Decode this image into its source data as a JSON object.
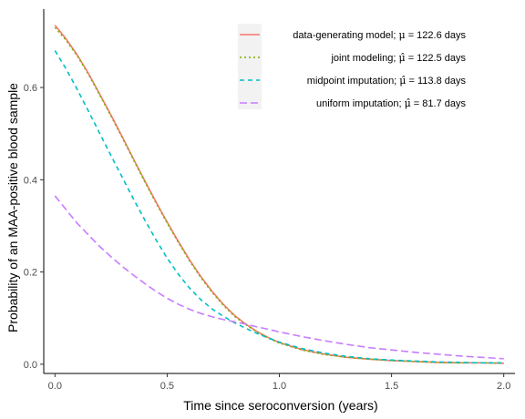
{
  "chart_data": {
    "type": "line",
    "title": "",
    "xlabel": "Time since seroconversion (years)",
    "ylabel": "Probability of an MAA-positive blood sample",
    "xlim": [
      -0.05,
      2.05
    ],
    "ylim": [
      -0.02,
      0.77
    ],
    "x_ticks": [
      0.0,
      0.5,
      1.0,
      1.5,
      2.0
    ],
    "x_tick_labels": [
      "0.0",
      "0.5",
      "1.0",
      "1.5",
      "2.0"
    ],
    "y_ticks": [
      0.0,
      0.2,
      0.4,
      0.6
    ],
    "y_tick_labels": [
      "0.0",
      "0.2",
      "0.4",
      "0.6"
    ],
    "grid": false,
    "legend_position": "top-right",
    "x": [
      0,
      0.05,
      0.1,
      0.15,
      0.2,
      0.25,
      0.3,
      0.35,
      0.4,
      0.45,
      0.5,
      0.55,
      0.6,
      0.65,
      0.7,
      0.75,
      0.8,
      0.85,
      0.9,
      0.95,
      1.0,
      1.1,
      1.2,
      1.3,
      1.4,
      1.5,
      1.6,
      1.7,
      1.8,
      1.9,
      2.0
    ],
    "series": [
      {
        "name": "data-generating model; ",
        "symbol": "μ",
        "value_text": " = 122.6 days",
        "color": "#F8766D",
        "dash": "solid",
        "values": [
          0.735,
          0.705,
          0.67,
          0.63,
          0.585,
          0.54,
          0.493,
          0.445,
          0.398,
          0.352,
          0.308,
          0.266,
          0.226,
          0.19,
          0.158,
          0.13,
          0.106,
          0.087,
          0.071,
          0.058,
          0.047,
          0.032,
          0.022,
          0.015,
          0.011,
          0.008,
          0.006,
          0.004,
          0.003,
          0.003,
          0.002
        ]
      },
      {
        "name": "joint modeling; ",
        "symbol": "μ̂",
        "value_text": " = 122.5 days",
        "color": "#7CAE00",
        "dash": "dotted",
        "values": [
          0.73,
          0.702,
          0.668,
          0.628,
          0.583,
          0.538,
          0.491,
          0.443,
          0.396,
          0.35,
          0.306,
          0.264,
          0.224,
          0.188,
          0.156,
          0.128,
          0.104,
          0.086,
          0.07,
          0.057,
          0.046,
          0.031,
          0.021,
          0.015,
          0.011,
          0.008,
          0.006,
          0.004,
          0.003,
          0.003,
          0.002
        ]
      },
      {
        "name": "midpoint imputation; ",
        "symbol": "μ̂",
        "value_text": " = 113.8 days",
        "color": "#00BFC4",
        "dash": "dashed",
        "values": [
          0.68,
          0.64,
          0.595,
          0.548,
          0.5,
          0.452,
          0.405,
          0.358,
          0.313,
          0.27,
          0.23,
          0.195,
          0.165,
          0.14,
          0.12,
          0.104,
          0.09,
          0.078,
          0.067,
          0.057,
          0.048,
          0.034,
          0.024,
          0.017,
          0.012,
          0.009,
          0.007,
          0.005,
          0.004,
          0.003,
          0.003
        ]
      },
      {
        "name": "uniform imputation; ",
        "symbol": "μ̂",
        "value_text": " = 81.7 days",
        "color": "#C77CFF",
        "dash": "longdash",
        "values": [
          0.365,
          0.335,
          0.305,
          0.28,
          0.255,
          0.233,
          0.212,
          0.193,
          0.175,
          0.158,
          0.143,
          0.13,
          0.119,
          0.11,
          0.103,
          0.097,
          0.092,
          0.087,
          0.081,
          0.076,
          0.07,
          0.06,
          0.051,
          0.043,
          0.036,
          0.031,
          0.026,
          0.022,
          0.018,
          0.015,
          0.012
        ]
      }
    ]
  }
}
